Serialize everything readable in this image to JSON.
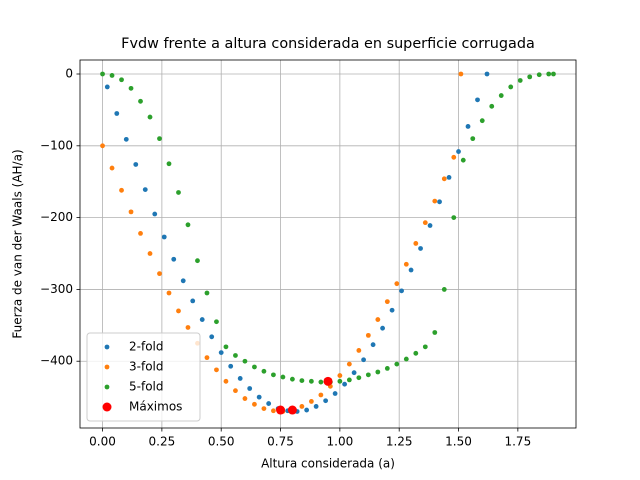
{
  "chart_data": {
    "type": "scatter",
    "title": "Fvdw frente a altura considerada en superficie corrugada",
    "x_label": "Altura considerada (a)",
    "y_label": "Fuerza de van der Waals (AH/a)",
    "xlim": [
      -0.095,
      1.995
    ],
    "ylim": [
      -493,
      19.5
    ],
    "xticks": [
      {
        "value": 0,
        "label": "0.00"
      },
      0.25,
      {
        "value": 0.5,
        "label": "0.50"
      },
      0.75,
      {
        "value": 1,
        "label": "1.00"
      },
      1.25,
      {
        "value": 1.5,
        "label": "1.50"
      },
      1.75
    ],
    "yticks": [
      {
        "value": -400,
        "label": "−400"
      },
      {
        "value": -300,
        "label": "−300"
      },
      {
        "value": -200,
        "label": "−200"
      },
      {
        "value": -100,
        "label": "−100"
      },
      0
    ],
    "grid": true,
    "legend": "lower left",
    "series": [
      {
        "name": "2-fold",
        "color": "#1f77b4",
        "x": [
          0.02,
          0.06,
          0.1,
          0.14,
          0.18,
          0.22,
          0.26,
          0.3,
          0.34,
          0.38,
          0.42,
          0.46,
          0.5,
          0.54,
          0.58,
          0.62,
          0.66,
          0.7,
          0.74,
          0.78,
          0.82,
          0.86,
          0.9,
          0.94,
          0.98,
          1.02,
          1.06,
          1.1,
          1.14,
          1.18,
          1.22,
          1.26,
          1.3,
          1.34,
          1.38,
          1.42,
          1.46,
          1.5,
          1.54,
          1.58,
          1.62
        ],
        "values": [
          -18,
          -55,
          -91,
          -126,
          -161,
          -195,
          -227,
          -258,
          -288,
          -316,
          -342,
          -366,
          -388,
          -407,
          -424,
          -438,
          -450,
          -459,
          -466,
          -469,
          -470,
          -468,
          -463,
          -455,
          -445,
          -432,
          -416,
          -398,
          -377,
          -354,
          -329,
          -302,
          -273,
          -243,
          -211,
          -178,
          -144,
          -108,
          -73,
          -36,
          0
        ]
      },
      {
        "name": "3-fold",
        "color": "#ff7f0e",
        "x": [
          0,
          0.04,
          0.08,
          0.12,
          0.16,
          0.2,
          0.24,
          0.28,
          0.32,
          0.36,
          0.4,
          0.44,
          0.48,
          0.52,
          0.56,
          0.6,
          0.64,
          0.68,
          0.72,
          0.76,
          0.8,
          0.84,
          0.88,
          0.92,
          0.96,
          1.0,
          1.04,
          1.08,
          1.12,
          1.16,
          1.2,
          1.24,
          1.28,
          1.32,
          1.36,
          1.4,
          1.44,
          1.48,
          1.51
        ],
        "values": [
          -100,
          -131,
          -162,
          -192,
          -222,
          -250,
          -278,
          -305,
          -330,
          -353,
          -375,
          -395,
          -412,
          -428,
          -441,
          -452,
          -460,
          -466,
          -469,
          -470,
          -468,
          -463,
          -456,
          -447,
          -435,
          -420,
          -404,
          -385,
          -364,
          -342,
          -317,
          -292,
          -265,
          -236,
          -207,
          -177,
          -146,
          -116,
          0
        ]
      },
      {
        "name": "5-fold",
        "color": "#2ca02c",
        "x": [
          0,
          0.04,
          0.08,
          0.12,
          0.16,
          0.2,
          0.24,
          0.28,
          0.32,
          0.36,
          0.4,
          0.44,
          0.48,
          0.52,
          0.56,
          0.6,
          0.64,
          0.68,
          0.72,
          0.76,
          0.8,
          0.84,
          0.88,
          0.92,
          0.96,
          1.0,
          1.04,
          1.08,
          1.12,
          1.16,
          1.2,
          1.24,
          1.28,
          1.32,
          1.36,
          1.4,
          1.44,
          1.48,
          1.52,
          1.56,
          1.6,
          1.64,
          1.68,
          1.72,
          1.76,
          1.8,
          1.84,
          1.88,
          1.9
        ],
        "values": [
          0,
          -2,
          -8,
          -20,
          -38,
          -60,
          -90,
          -125,
          -165,
          -210,
          -260,
          -305,
          -345,
          -380,
          -392,
          -400,
          -408,
          -414,
          -419,
          -422,
          -425,
          -427,
          -428,
          -429,
          -429,
          -428,
          -426,
          -423,
          -419,
          -415,
          -410,
          -404,
          -397,
          -389,
          -380,
          -360,
          -300,
          -200,
          -120,
          -90,
          -65,
          -45,
          -30,
          -18,
          -9,
          -4,
          -1,
          0,
          0
        ]
      },
      {
        "name": "Máximos",
        "color": "#ff0000",
        "x": [
          0.75,
          0.8,
          0.95
        ],
        "values": [
          -468,
          -468,
          -428
        ]
      }
    ]
  }
}
